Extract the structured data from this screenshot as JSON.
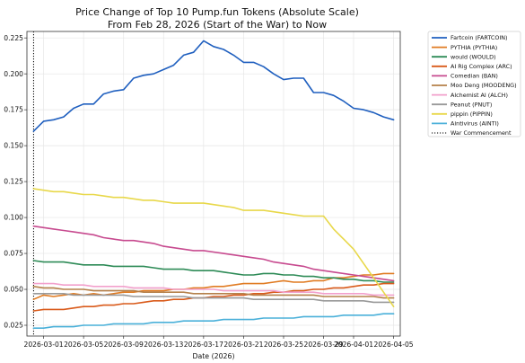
{
  "chart_data": {
    "type": "line",
    "title": "Price Change of Top 10 Pump.fun Tokens (Absolute Scale)",
    "subtitle": "From Feb 28, 2026 (Start of the War) to Now",
    "xlabel": "Date (2026)",
    "ylabel": "",
    "x": [
      "2026-02-28",
      "2026-03-01",
      "2026-03-02",
      "2026-03-03",
      "2026-03-04",
      "2026-03-05",
      "2026-03-06",
      "2026-03-07",
      "2026-03-08",
      "2026-03-09",
      "2026-03-10",
      "2026-03-11",
      "2026-03-12",
      "2026-03-13",
      "2026-03-14",
      "2026-03-15",
      "2026-03-16",
      "2026-03-17",
      "2026-03-18",
      "2026-03-19",
      "2026-03-20",
      "2026-03-21",
      "2026-03-22",
      "2026-03-23",
      "2026-03-24",
      "2026-03-25",
      "2026-03-26",
      "2026-03-27",
      "2026-03-28",
      "2026-03-29",
      "2026-03-30",
      "2026-03-31",
      "2026-04-01",
      "2026-04-02",
      "2026-04-03",
      "2026-04-04",
      "2026-04-05"
    ],
    "x_ticks": [
      "2026-03-01",
      "2026-03-05",
      "2026-03-09",
      "2026-03-13",
      "2026-03-17",
      "2026-03-21",
      "2026-03-25",
      "2026-03-29",
      "2026-04-01",
      "2026-04-05"
    ],
    "ylim": [
      0.0175,
      0.2295
    ],
    "y_ticks": [
      "0.025",
      "0.050",
      "0.075",
      "0.100",
      "0.125",
      "0.150",
      "0.175",
      "0.200",
      "0.225"
    ],
    "grid": true,
    "legend_position": "outside-right",
    "series": [
      {
        "name": "Fartcoin (FARTCOIN)",
        "color": "#1f5fbf",
        "values": [
          0.16,
          0.167,
          0.168,
          0.17,
          0.176,
          0.179,
          0.179,
          0.186,
          0.188,
          0.189,
          0.197,
          0.199,
          0.2,
          0.203,
          0.206,
          0.213,
          0.215,
          0.223,
          0.219,
          0.217,
          0.213,
          0.208,
          0.208,
          0.205,
          0.2,
          0.196,
          0.197,
          0.197,
          0.187,
          0.187,
          0.185,
          0.181,
          0.176,
          0.175,
          0.173,
          0.17,
          0.168
        ]
      },
      {
        "name": "PYTHIA (PYTHIA)",
        "color": "#e07b22",
        "values": [
          0.043,
          0.046,
          0.045,
          0.046,
          0.047,
          0.046,
          0.047,
          0.046,
          0.047,
          0.048,
          0.048,
          0.049,
          0.049,
          0.049,
          0.05,
          0.05,
          0.051,
          0.051,
          0.052,
          0.052,
          0.053,
          0.054,
          0.054,
          0.054,
          0.055,
          0.056,
          0.055,
          0.055,
          0.056,
          0.056,
          0.058,
          0.058,
          0.059,
          0.06,
          0.06,
          0.061,
          0.061
        ]
      },
      {
        "name": "would (WOULD)",
        "color": "#2e8b57",
        "values": [
          0.07,
          0.069,
          0.069,
          0.069,
          0.068,
          0.067,
          0.067,
          0.067,
          0.066,
          0.066,
          0.066,
          0.066,
          0.065,
          0.064,
          0.064,
          0.064,
          0.063,
          0.063,
          0.063,
          0.062,
          0.061,
          0.06,
          0.06,
          0.061,
          0.061,
          0.06,
          0.06,
          0.059,
          0.059,
          0.058,
          0.058,
          0.057,
          0.057,
          0.056,
          0.056,
          0.055,
          0.055
        ]
      },
      {
        "name": "AI Rig Complex (ARC)",
        "color": "#d95a1a",
        "values": [
          0.035,
          0.036,
          0.036,
          0.036,
          0.037,
          0.038,
          0.038,
          0.039,
          0.039,
          0.04,
          0.04,
          0.041,
          0.042,
          0.042,
          0.043,
          0.043,
          0.044,
          0.044,
          0.045,
          0.045,
          0.046,
          0.046,
          0.047,
          0.047,
          0.048,
          0.048,
          0.049,
          0.049,
          0.05,
          0.05,
          0.051,
          0.051,
          0.052,
          0.053,
          0.053,
          0.054,
          0.054
        ]
      },
      {
        "name": "Comedian (BAN)",
        "color": "#c74a8f",
        "values": [
          0.094,
          0.093,
          0.092,
          0.091,
          0.09,
          0.089,
          0.088,
          0.086,
          0.085,
          0.084,
          0.084,
          0.083,
          0.082,
          0.08,
          0.079,
          0.078,
          0.077,
          0.077,
          0.076,
          0.075,
          0.074,
          0.073,
          0.072,
          0.071,
          0.069,
          0.068,
          0.067,
          0.066,
          0.064,
          0.063,
          0.062,
          0.061,
          0.06,
          0.059,
          0.058,
          0.057,
          0.056
        ]
      },
      {
        "name": "Moo Deng (MOODENG)",
        "color": "#b5804a",
        "values": [
          0.052,
          0.051,
          0.051,
          0.05,
          0.05,
          0.05,
          0.049,
          0.049,
          0.049,
          0.049,
          0.049,
          0.048,
          0.048,
          0.048,
          0.048,
          0.048,
          0.047,
          0.047,
          0.047,
          0.047,
          0.047,
          0.047,
          0.046,
          0.046,
          0.046,
          0.046,
          0.046,
          0.046,
          0.046,
          0.045,
          0.045,
          0.045,
          0.045,
          0.045,
          0.045,
          0.044,
          0.044
        ]
      },
      {
        "name": "Alchemist AI (ALCH)",
        "color": "#f2a0cc",
        "values": [
          0.054,
          0.054,
          0.054,
          0.053,
          0.053,
          0.053,
          0.052,
          0.052,
          0.052,
          0.052,
          0.051,
          0.051,
          0.051,
          0.051,
          0.05,
          0.05,
          0.05,
          0.05,
          0.05,
          0.049,
          0.049,
          0.049,
          0.049,
          0.049,
          0.049,
          0.048,
          0.048,
          0.048,
          0.048,
          0.047,
          0.047,
          0.047,
          0.047,
          0.047,
          0.046,
          0.046,
          0.046
        ]
      },
      {
        "name": "Peanut (PNUT)",
        "color": "#999999",
        "values": [
          0.047,
          0.047,
          0.047,
          0.047,
          0.046,
          0.046,
          0.046,
          0.046,
          0.046,
          0.046,
          0.045,
          0.045,
          0.045,
          0.045,
          0.045,
          0.045,
          0.044,
          0.044,
          0.044,
          0.044,
          0.044,
          0.044,
          0.043,
          0.043,
          0.043,
          0.043,
          0.043,
          0.043,
          0.043,
          0.042,
          0.042,
          0.042,
          0.042,
          0.042,
          0.041,
          0.041,
          0.041
        ]
      },
      {
        "name": "pippin (PIPPIN)",
        "color": "#e8d84a",
        "values": [
          0.12,
          0.119,
          0.118,
          0.118,
          0.117,
          0.116,
          0.116,
          0.115,
          0.114,
          0.114,
          0.113,
          0.112,
          0.112,
          0.111,
          0.11,
          0.11,
          0.11,
          0.11,
          0.109,
          0.108,
          0.107,
          0.105,
          0.105,
          0.105,
          0.104,
          0.103,
          0.102,
          0.101,
          0.101,
          0.101,
          0.092,
          0.085,
          0.078,
          0.068,
          0.058,
          0.048,
          0.038
        ]
      },
      {
        "name": "Aintivirus (AINTI)",
        "color": "#4ab0d9",
        "values": [
          0.023,
          0.023,
          0.024,
          0.024,
          0.024,
          0.025,
          0.025,
          0.025,
          0.026,
          0.026,
          0.026,
          0.026,
          0.027,
          0.027,
          0.027,
          0.028,
          0.028,
          0.028,
          0.028,
          0.029,
          0.029,
          0.029,
          0.029,
          0.03,
          0.03,
          0.03,
          0.03,
          0.031,
          0.031,
          0.031,
          0.031,
          0.032,
          0.032,
          0.032,
          0.032,
          0.033,
          0.033
        ]
      }
    ],
    "annotations": [
      {
        "name": "War Commencement",
        "x": "2026-02-28",
        "style": "dotted",
        "color": "#000000"
      }
    ]
  }
}
